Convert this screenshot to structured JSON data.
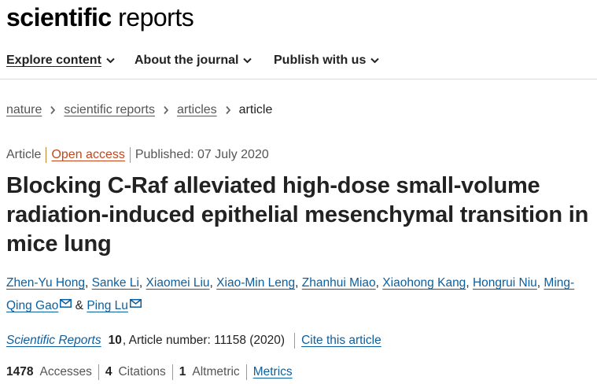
{
  "header": {
    "logo_bold": "scientific",
    "logo_regular": " reports"
  },
  "nav": {
    "items": [
      {
        "label": "Explore content",
        "icon": "chevron-down-icon"
      },
      {
        "label": "About the journal",
        "icon": "chevron-down-icon"
      },
      {
        "label": "Publish with us",
        "icon": "chevron-down-icon"
      }
    ]
  },
  "breadcrumb": {
    "items": [
      "nature",
      "scientific reports",
      "articles"
    ],
    "current": "article"
  },
  "article_meta": {
    "type": "Article",
    "access": "Open access",
    "published": "Published: 07 July 2020"
  },
  "article": {
    "title": "Blocking C-Raf alleviated high-dose small-volume radiation-induced epithelial mesenchymal transition in mice lung"
  },
  "authors": {
    "list": [
      "Zhen-Yu Hong",
      "Sanke Li",
      "Xiaomei Liu",
      "Xiao-Min Leng",
      "Zhanhui Miao",
      "Xiaohong Kang",
      "Hongrui Niu",
      "Ming-Qing Gao",
      "Ping Lu"
    ],
    "separator": ", ",
    "and": " & "
  },
  "citation": {
    "journal": "Scientific Reports",
    "volume": "10",
    "article_number": ", Article number: 11158 (2020)",
    "cite_label": "Cite this article"
  },
  "metrics": {
    "accesses_count": "1478",
    "accesses_label": "Accesses",
    "citations_count": "4",
    "citations_label": "Citations",
    "altmetric_count": "1",
    "altmetric_label": "Altmetric",
    "metrics_link": "Metrics"
  },
  "colors": {
    "link": "#0c5f9e",
    "open_access": "#c5461c",
    "divider": "#c5812e"
  }
}
